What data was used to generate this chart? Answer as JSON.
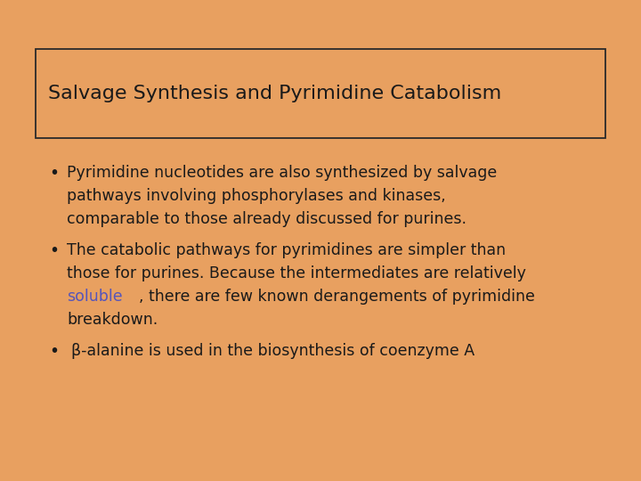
{
  "background_color": "#E8A060",
  "title": "Salvage Synthesis and Pyrimidine Catabolism",
  "title_fontsize": 16,
  "title_color": "#1a1a1a",
  "title_box_edgecolor": "#2a2a2a",
  "title_box_facecolor": "#E8A060",
  "body_text_color": "#1a1a1a",
  "highlight_color": "#5555BB",
  "body_fontsize": 12.5,
  "bullet1_line1": "Pyrimidine nucleotides are also synthesized by salvage",
  "bullet1_line2": "pathways involving phosphorylases and kinases,",
  "bullet1_line3": "comparable to those already discussed for purines.",
  "bullet2_line1": "The catabolic pathways for pyrimidines are simpler than",
  "bullet2_line2": "those for purines. Because the intermediates are relatively",
  "bullet2_highlight": "soluble",
  "bullet2_after_highlight": ", there are few known derangements of pyrimidine",
  "bullet2_line4": "breakdown.",
  "bullet3_line1": "β-alanine is used in the biosynthesis of coenzyme A"
}
